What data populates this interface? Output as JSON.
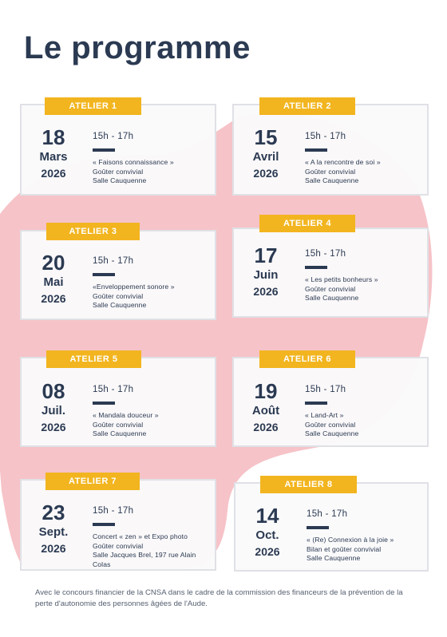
{
  "page": {
    "title": "Le programme",
    "footer": "Avec le concours financier de la CNSA dans le cadre de la commission des financeurs de la prévention de la perte d'autonomie des personnes âgées de l'Aude."
  },
  "colors": {
    "accent_yellow": "#f2b51f",
    "navy_text": "#2b3a52",
    "blob_pink": "#f6c3c8",
    "card_border": "#dfe1e6"
  },
  "ateliers": [
    {
      "tag": "ATELIER 1",
      "day": "18",
      "month": "Mars",
      "year": "2026",
      "time": "15h - 17h",
      "lines": [
        "« Faisons connaissance »",
        "Goûter convivial",
        "Salle Cauquenne"
      ]
    },
    {
      "tag": "ATELIER 2",
      "day": "15",
      "month": "Avril",
      "year": "2026",
      "time": "15h - 17h",
      "lines": [
        "« A la rencontre de soi »",
        "Goûter convivial",
        "Salle Cauquenne"
      ]
    },
    {
      "tag": "ATELIER 3",
      "day": "20",
      "month": "Mai",
      "year": "2026",
      "time": "15h - 17h",
      "lines": [
        "«Enveloppement sonore »",
        "Goûter convivial",
        "Salle Cauquenne"
      ]
    },
    {
      "tag": "ATELIER 4",
      "day": "17",
      "month": "Juin",
      "year": "2026",
      "time": "15h - 17h",
      "lines": [
        "« Les petits bonheurs »",
        "Goûter convivial",
        "Salle Cauquenne"
      ]
    },
    {
      "tag": "ATELIER 5",
      "day": "08",
      "month": "Juil.",
      "year": "2026",
      "time": "15h - 17h",
      "lines": [
        "« Mandala douceur »",
        "Goûter convivial",
        "Salle Cauquenne"
      ]
    },
    {
      "tag": "ATELIER 6",
      "day": "19",
      "month": "Août",
      "year": "2026",
      "time": "15h - 17h",
      "lines": [
        "« Land-Art »",
        "Goûter convivial",
        "Salle Cauquenne"
      ]
    },
    {
      "tag": "ATELIER 7",
      "day": "23",
      "month": "Sept.",
      "year": "2026",
      "time": "15h - 17h",
      "lines": [
        "Concert « zen » et Expo photo",
        "Goûter convivial",
        "Salle Jacques Brel, 197 rue Alain",
        "Colas"
      ]
    },
    {
      "tag": "ATELIER 8",
      "day": "14",
      "month": "Oct.",
      "year": "2026",
      "time": "15h - 17h",
      "lines": [
        "« (Re) Connexion à la joie »",
        "Bilan et goûter convivial",
        "Salle Cauquenne"
      ]
    }
  ]
}
